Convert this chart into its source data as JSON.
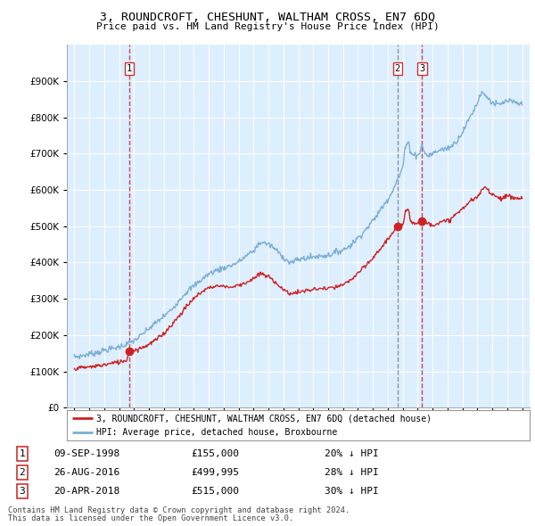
{
  "title": "3, ROUNDCROFT, CHESHUNT, WALTHAM CROSS, EN7 6DQ",
  "subtitle": "Price paid vs. HM Land Registry's House Price Index (HPI)",
  "legend_line1": "3, ROUNDCROFT, CHESHUNT, WALTHAM CROSS, EN7 6DQ (detached house)",
  "legend_line2": "HPI: Average price, detached house, Broxbourne",
  "footer1": "Contains HM Land Registry data © Crown copyright and database right 2024.",
  "footer2": "This data is licensed under the Open Government Licence v3.0.",
  "transactions": [
    {
      "num": 1,
      "date": "09-SEP-1998",
      "price": 155000,
      "pct": "20%",
      "dir": "↓",
      "x": 1998.69,
      "vline_style": "dashed_red"
    },
    {
      "num": 2,
      "date": "26-AUG-2016",
      "price": 499995,
      "pct": "28%",
      "dir": "↓",
      "x": 2016.65,
      "vline_style": "dashed_gray"
    },
    {
      "num": 3,
      "date": "20-APR-2018",
      "price": 515000,
      "pct": "30%",
      "dir": "↓",
      "x": 2018.3,
      "vline_style": "dashed_red"
    }
  ],
  "hpi_color": "#7bafd4",
  "price_color": "#cc2222",
  "vline_red_color": "#cc3333",
  "vline_gray_color": "#888888",
  "marker_color": "#cc2222",
  "background_color": "#ffffff",
  "chart_bg_color": "#ddeeff",
  "grid_color": "#ffffff",
  "ylim": [
    0,
    1000000
  ],
  "xlim": [
    1994.5,
    2025.5
  ],
  "yticks": [
    0,
    100000,
    200000,
    300000,
    400000,
    500000,
    600000,
    700000,
    800000,
    900000
  ],
  "xticks": [
    1995,
    1996,
    1997,
    1998,
    1999,
    2000,
    2001,
    2002,
    2003,
    2004,
    2005,
    2006,
    2007,
    2008,
    2009,
    2010,
    2011,
    2012,
    2013,
    2014,
    2015,
    2016,
    2017,
    2018,
    2019,
    2020,
    2021,
    2022,
    2023,
    2024,
    2025
  ]
}
